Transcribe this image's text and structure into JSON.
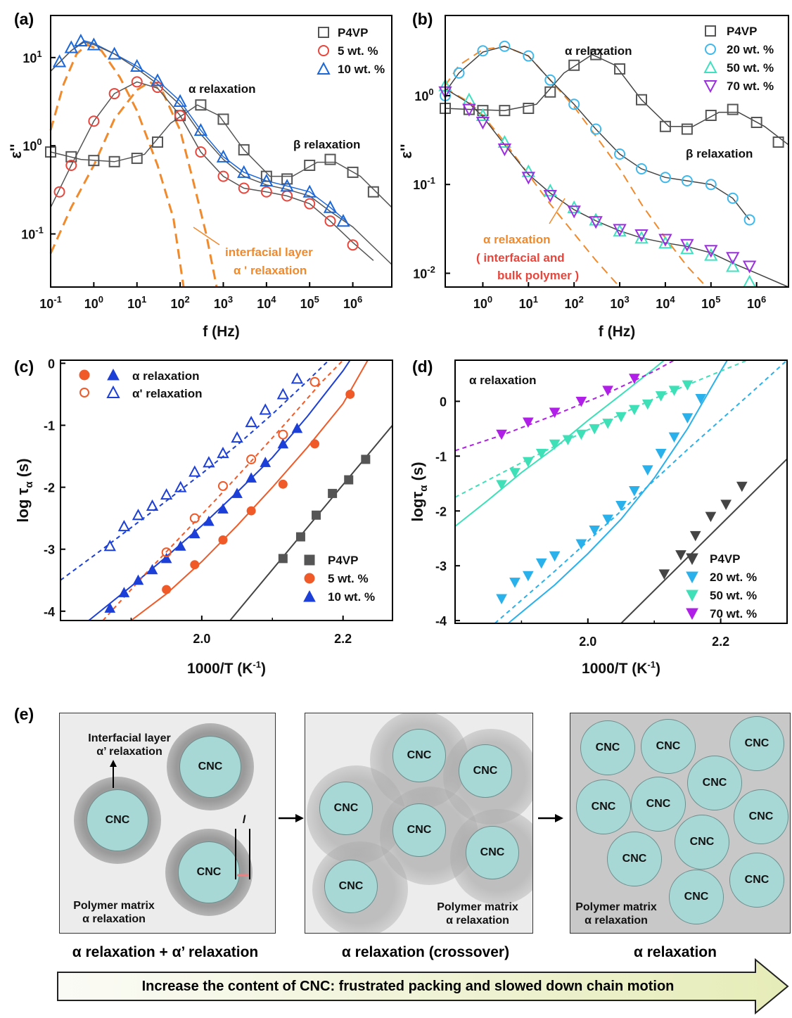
{
  "panels": {
    "a": "(a)",
    "b": "(b)",
    "c": "(c)",
    "d": "(d)",
    "e": "(e)"
  },
  "colors": {
    "p4vp": "#555555",
    "red": "#e8463c",
    "blue": "#1c67d8",
    "orange": "#f08a2c",
    "cyan": "#3fb8ec",
    "teal": "#40e0c0",
    "violet": "#9b2fe0",
    "darkgray": "#444444"
  },
  "chart_data": [
    {
      "id": "a",
      "type": "scatter",
      "xscale": "log",
      "yscale": "log",
      "xlabel": "f (Hz)",
      "ylabel": "ε''",
      "xlim": [
        0.1,
        8000000
      ],
      "ylim": [
        0.025,
        30
      ],
      "xticks": [
        "10^-1",
        "10^0",
        "10^1",
        "10^2",
        "10^3",
        "10^4",
        "10^5",
        "10^6"
      ],
      "yticks": [
        "10^-1",
        "10^0",
        "10^1"
      ],
      "legend": {
        "position": "top-right",
        "entries": [
          "P4VP",
          "5 wt. %",
          "10 wt. %"
        ]
      },
      "annotations": [
        "α relaxation",
        "β relaxation",
        "interfacial layer",
        "α ' relaxation"
      ],
      "series": [
        {
          "name": "P4VP",
          "marker": "square",
          "color": "#555555",
          "x": [
            0.1,
            0.3,
            1,
            3,
            10,
            30,
            100,
            300,
            1000,
            3000,
            10000,
            30000,
            100000,
            300000,
            1000000,
            3000000
          ],
          "y": [
            0.85,
            0.75,
            0.68,
            0.66,
            0.72,
            1.1,
            2.2,
            2.9,
            2.0,
            0.9,
            0.45,
            0.42,
            0.6,
            0.7,
            0.5,
            0.3
          ]
        },
        {
          "name": "5 wt. %",
          "marker": "circle",
          "color": "#e8463c",
          "x": [
            0.16,
            0.3,
            1,
            3,
            10,
            30,
            100,
            300,
            1000,
            3000,
            10000,
            30000,
            100000,
            300000,
            1000000
          ],
          "y": [
            0.3,
            0.6,
            1.9,
            3.9,
            5.3,
            4.6,
            2.2,
            0.85,
            0.45,
            0.33,
            0.3,
            0.27,
            0.22,
            0.14,
            0.075
          ]
        },
        {
          "name": "10 wt. %",
          "marker": "triangle",
          "color": "#1c67d8",
          "x": [
            0.16,
            0.3,
            0.5,
            1,
            3,
            10,
            30,
            100,
            300,
            1000,
            3000,
            10000,
            30000,
            100000,
            300000,
            600000
          ],
          "y": [
            9,
            13,
            15.5,
            14,
            11,
            8,
            5.5,
            3.2,
            1.5,
            0.75,
            0.5,
            0.4,
            0.35,
            0.3,
            0.2,
            0.14
          ]
        }
      ]
    },
    {
      "id": "b",
      "type": "scatter",
      "xscale": "log",
      "yscale": "log",
      "xlabel": "f (Hz)",
      "ylabel": "ε''",
      "xlim": [
        0.15,
        5000000
      ],
      "ylim": [
        0.007,
        8
      ],
      "xticks": [
        "10^0",
        "10^1",
        "10^2",
        "10^3",
        "10^4",
        "10^5",
        "10^6"
      ],
      "yticks": [
        "10^-2",
        "10^-1",
        "10^0"
      ],
      "legend": {
        "position": "top-right",
        "entries": [
          "P4VP",
          "20 wt. %",
          "50 wt. %",
          "70 wt. %"
        ]
      },
      "annotations": [
        "α relaxation",
        "β relaxation",
        "α relaxation",
        "( interfacial and",
        "bulk polymer )"
      ],
      "series": [
        {
          "name": "P4VP",
          "marker": "square",
          "color": "#555555",
          "x": [
            0.15,
            0.5,
            1,
            3,
            10,
            30,
            100,
            300,
            1000,
            3000,
            10000,
            30000,
            100000,
            300000,
            1000000,
            3000000
          ],
          "y": [
            0.72,
            0.7,
            0.68,
            0.68,
            0.72,
            1.1,
            2.2,
            2.9,
            2.0,
            0.9,
            0.45,
            0.42,
            0.6,
            0.7,
            0.5,
            0.3
          ]
        },
        {
          "name": "20 wt. %",
          "marker": "circle",
          "color": "#3fb8ec",
          "x": [
            0.15,
            0.3,
            1,
            3,
            10,
            30,
            100,
            300,
            1000,
            3000,
            10000,
            30000,
            100000,
            300000,
            700000
          ],
          "y": [
            1.0,
            1.8,
            3.2,
            3.6,
            2.8,
            1.5,
            0.8,
            0.42,
            0.22,
            0.15,
            0.12,
            0.11,
            0.1,
            0.07,
            0.04
          ]
        },
        {
          "name": "50 wt. %",
          "marker": "triangle",
          "color": "#40e0c0",
          "x": [
            0.15,
            0.5,
            1,
            3,
            10,
            30,
            100,
            300,
            1000,
            3000,
            10000,
            30000,
            100000,
            300000,
            700000
          ],
          "y": [
            1.3,
            0.9,
            0.6,
            0.3,
            0.14,
            0.085,
            0.055,
            0.04,
            0.03,
            0.025,
            0.022,
            0.019,
            0.016,
            0.012,
            0.008
          ]
        },
        {
          "name": "70 wt. %",
          "marker": "triangle-down",
          "color": "#9b2fe0",
          "x": [
            0.15,
            0.5,
            1,
            3,
            10,
            30,
            100,
            300,
            1000,
            3000,
            10000,
            30000,
            100000,
            300000,
            700000
          ],
          "y": [
            1.1,
            0.7,
            0.5,
            0.25,
            0.12,
            0.075,
            0.05,
            0.038,
            0.031,
            0.027,
            0.024,
            0.021,
            0.018,
            0.015,
            0.012
          ]
        }
      ]
    },
    {
      "id": "c",
      "type": "scatter",
      "xlabel": "1000/T (K-1)",
      "ylabel": "log τα (s)",
      "xlim": [
        1.8,
        2.27
      ],
      "ylim": [
        -4.15,
        0.05
      ],
      "xticks": [
        "2.0",
        "2.2"
      ],
      "yticks": [
        "0",
        "-1",
        "-2",
        "-3",
        "-4"
      ],
      "legend": {
        "position": "top-left",
        "entries": [
          "α relaxation",
          "α' relaxation"
        ]
      },
      "legend2": {
        "position": "bottom-right",
        "entries": [
          "P4VP",
          "5 wt. %",
          "10 wt. %"
        ]
      },
      "series": [
        {
          "name": "P4VP",
          "marker": "square",
          "filled": true,
          "color": "#555555",
          "x": [
            2.115,
            2.14,
            2.162,
            2.185,
            2.208,
            2.232
          ],
          "y": [
            -3.15,
            -2.8,
            -2.45,
            -2.1,
            -1.88,
            -1.55
          ]
        },
        {
          "name": "5 wt. %",
          "marker": "circle",
          "filled": true,
          "color": "#f05a28",
          "x": [
            1.95,
            1.99,
            2.03,
            2.07,
            2.115,
            2.16,
            2.21
          ],
          "y": [
            -3.65,
            -3.25,
            -2.85,
            -2.38,
            -1.95,
            -1.3,
            -0.5
          ]
        },
        {
          "name": "10 wt. %",
          "marker": "triangle",
          "filled": true,
          "color": "#1c3fd8",
          "x": [
            1.87,
            1.89,
            1.91,
            1.93,
            1.95,
            1.97,
            1.99,
            2.01,
            2.03,
            2.05,
            2.07,
            2.09,
            2.115,
            2.135
          ],
          "y": [
            -3.95,
            -3.7,
            -3.5,
            -3.33,
            -3.15,
            -2.95,
            -2.75,
            -2.55,
            -2.35,
            -2.1,
            -1.85,
            -1.6,
            -1.3,
            -1.05
          ]
        },
        {
          "name": "5 wt. % α'",
          "marker": "circle",
          "filled": false,
          "color": "#f05a28",
          "x": [
            1.95,
            1.99,
            2.03,
            2.07,
            2.115,
            2.16
          ],
          "y": [
            -3.05,
            -2.5,
            -1.98,
            -1.55,
            -1.15,
            -0.3
          ]
        },
        {
          "name": "10 wt. % α'",
          "marker": "triangle",
          "filled": false,
          "color": "#1c3fd8",
          "x": [
            1.87,
            1.89,
            1.91,
            1.93,
            1.95,
            1.97,
            1.99,
            2.01,
            2.03,
            2.05,
            2.07,
            2.09,
            2.115,
            2.135
          ],
          "y": [
            -2.95,
            -2.63,
            -2.45,
            -2.3,
            -2.12,
            -2.0,
            -1.75,
            -1.6,
            -1.45,
            -1.2,
            -0.95,
            -0.75,
            -0.5,
            -0.25
          ]
        }
      ]
    },
    {
      "id": "d",
      "type": "scatter",
      "xlabel": "1000/T (K-1)",
      "ylabel": "logτα (s)",
      "xlim": [
        1.8,
        2.3
      ],
      "ylim": [
        -4.05,
        0.75
      ],
      "xticks": [
        "2.0",
        "2.2"
      ],
      "yticks": [
        "0",
        "-1",
        "-2",
        "-3",
        "-4"
      ],
      "legend": {
        "position": "bottom-right",
        "entries": [
          "P4VP",
          "20 wt. %",
          "50 wt. %",
          "70 wt. %"
        ]
      },
      "annotations": [
        "α relaxation"
      ],
      "series": [
        {
          "name": "P4VP",
          "marker": "triangle-down",
          "filled": true,
          "color": "#444444",
          "x": [
            2.115,
            2.14,
            2.162,
            2.185,
            2.208,
            2.232
          ],
          "y": [
            -3.15,
            -2.8,
            -2.45,
            -2.1,
            -1.88,
            -1.55
          ]
        },
        {
          "name": "20 wt. %",
          "marker": "triangle-down",
          "filled": true,
          "color": "#2ab0ea",
          "x": [
            1.87,
            1.89,
            1.91,
            1.93,
            1.95,
            1.99,
            2.01,
            2.03,
            2.05,
            2.07,
            2.09,
            2.11,
            2.13,
            2.15,
            2.17
          ],
          "y": [
            -3.6,
            -3.3,
            -3.18,
            -2.95,
            -2.82,
            -2.6,
            -2.35,
            -2.15,
            -1.9,
            -1.63,
            -1.25,
            -0.95,
            -0.65,
            -0.3,
            0.05
          ]
        },
        {
          "name": "50 wt. %",
          "marker": "triangle-down",
          "filled": true,
          "color": "#3fe0b8",
          "x": [
            1.87,
            1.89,
            1.91,
            1.93,
            1.95,
            1.97,
            1.99,
            2.01,
            2.03,
            2.05,
            2.07,
            2.09,
            2.11,
            2.13,
            2.15
          ],
          "y": [
            -1.52,
            -1.3,
            -1.1,
            -0.95,
            -0.78,
            -0.7,
            -0.6,
            -0.5,
            -0.4,
            -0.28,
            -0.15,
            -0.05,
            0.1,
            0.2,
            0.3
          ]
        },
        {
          "name": "70 wt. %",
          "marker": "triangle-down",
          "filled": true,
          "color": "#b01fe8",
          "x": [
            1.87,
            1.91,
            1.95,
            1.99,
            2.03,
            2.07
          ],
          "y": [
            -0.6,
            -0.38,
            -0.2,
            0.0,
            0.2,
            0.42
          ]
        }
      ]
    }
  ],
  "schematic": {
    "box1": {
      "cnc_label": "CNC",
      "interfacial": "Interfacial layer",
      "alpha_prime": "α’ relaxation",
      "matrix1": "Polymer matrix",
      "matrix2": "α relaxation",
      "thickness": "l"
    },
    "box2": {
      "cnc_label": "CNC",
      "matrix1": "Polymer matrix",
      "matrix2": "α relaxation"
    },
    "box3": {
      "cnc_label": "CNC",
      "matrix1": "Polymer matrix",
      "matrix2": "α relaxation"
    },
    "caption1": "α relaxation + α’ relaxation",
    "caption2": "α relaxation (crossover)",
    "caption3": "α relaxation",
    "arrow_text": "Increase the content of CNC: frustrated packing and slowed down chain motion"
  }
}
